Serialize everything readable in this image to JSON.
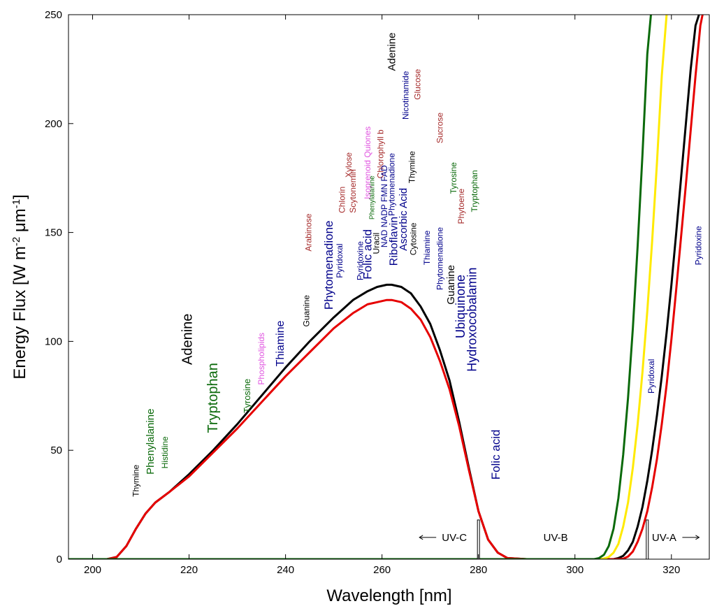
{
  "chart_data": {
    "type": "line",
    "title": "",
    "xlabel": "Wavelength [nm]",
    "ylabel_parts": [
      "Energy Flux [W m",
      "-2",
      " μm",
      "-1",
      "]"
    ],
    "xlim": [
      195,
      328
    ],
    "ylim": [
      0,
      250
    ],
    "xticks": [
      200,
      220,
      240,
      260,
      280,
      300,
      320
    ],
    "yticks": [
      0,
      50,
      100,
      150,
      200,
      250
    ],
    "grid": false,
    "legend": "none",
    "series": [
      {
        "color": "#000000",
        "x": [
          195,
          203,
          205,
          207,
          209,
          211,
          213,
          216,
          220,
          225,
          230,
          235,
          240,
          245,
          250,
          254,
          257,
          259,
          261,
          262,
          264,
          266,
          268,
          270,
          272,
          274,
          276,
          278,
          280,
          282,
          284,
          286,
          290,
          300,
          305,
          306,
          307,
          308,
          309,
          310,
          311,
          312,
          313,
          314,
          315,
          316,
          317,
          318,
          319,
          320,
          321,
          322,
          323,
          324,
          325,
          326,
          327
        ],
        "y": [
          0,
          0,
          1,
          6,
          14,
          21,
          26,
          31,
          39,
          50,
          62,
          75,
          88,
          100,
          111,
          119,
          123,
          125,
          126,
          126,
          125,
          122,
          116,
          108,
          96,
          82,
          63,
          42,
          22,
          9,
          3,
          0.5,
          0,
          0,
          0,
          0,
          0,
          0,
          0.5,
          1.5,
          4,
          8,
          15,
          24,
          36,
          50,
          66,
          84,
          104,
          126,
          150,
          175,
          200,
          225,
          245,
          252,
          255
        ]
      },
      {
        "color": "#e60000",
        "x": [
          195,
          203,
          205,
          207,
          209,
          211,
          213,
          216,
          220,
          225,
          230,
          235,
          240,
          245,
          250,
          254,
          257,
          259,
          261,
          262,
          264,
          266,
          268,
          270,
          272,
          274,
          276,
          278,
          280,
          282,
          284,
          286,
          290,
          300,
          305,
          306,
          307,
          308,
          309,
          310,
          311,
          312,
          313,
          314,
          315,
          316,
          317,
          318,
          319,
          320,
          321,
          322,
          323,
          324,
          325,
          326,
          327
        ],
        "y": [
          0,
          0,
          1,
          6,
          14,
          21,
          26,
          31,
          38,
          49,
          60,
          72,
          84,
          95,
          106,
          113,
          117,
          118,
          119,
          119,
          118,
          115,
          110,
          102,
          91,
          78,
          61,
          41,
          22,
          9,
          3,
          0.5,
          0,
          0,
          0,
          0,
          0,
          0,
          0,
          0.2,
          1.2,
          3.5,
          8,
          14,
          22,
          33,
          46,
          62,
          80,
          101,
          124,
          148,
          172,
          197,
          222,
          245,
          256
        ]
      },
      {
        "color": "#ffea00",
        "x": [
          195,
          300,
          305,
          306,
          307,
          308,
          309,
          310,
          311,
          312,
          313,
          314,
          315,
          316,
          317,
          318,
          319,
          319.5
        ],
        "y": [
          0,
          0,
          0,
          0.3,
          1,
          3,
          7,
          15,
          26,
          42,
          62,
          86,
          114,
          146,
          182,
          222,
          250,
          255
        ]
      },
      {
        "color": "#0b6a0b",
        "x": [
          195,
          300,
          304,
          305,
          306,
          307,
          308,
          309,
          310,
          311,
          312,
          313,
          314,
          315,
          316,
          316.5
        ],
        "y": [
          0,
          0,
          0,
          0.5,
          2,
          6,
          14,
          28,
          48,
          74,
          106,
          144,
          186,
          232,
          256,
          257
        ]
      }
    ],
    "boundaries": [
      {
        "x": 280,
        "height": 18
      },
      {
        "x": 315,
        "height": 18
      }
    ],
    "regions": [
      {
        "label": "UV-C",
        "x": 275,
        "y": 10,
        "arrow": "left"
      },
      {
        "label": "UV-B",
        "x": 296,
        "y": 10,
        "arrow": "none"
      },
      {
        "label": "UV-A",
        "x": 318.5,
        "y": 10,
        "arrow": "right"
      }
    ],
    "annotations": [
      {
        "text": "Thymine",
        "x": 209,
        "y": 36,
        "color": "#000000",
        "size": 12
      },
      {
        "text": "Phenylalanine",
        "x": 212,
        "y": 54,
        "color": "#0b6a0b",
        "size": 15
      },
      {
        "text": "Histidine",
        "x": 215,
        "y": 49,
        "color": "#0b6a0b",
        "size": 12
      },
      {
        "text": "Adenine",
        "x": 219.7,
        "y": 101,
        "color": "#000000",
        "size": 20
      },
      {
        "text": "Tryptophan",
        "x": 225,
        "y": 74,
        "color": "#0b6a0b",
        "size": 20
      },
      {
        "text": "Tyrosine",
        "x": 232,
        "y": 75,
        "color": "#0b6a0b",
        "size": 13
      },
      {
        "text": "Phospholipids",
        "x": 235,
        "y": 92,
        "color": "#e055e0",
        "size": 12
      },
      {
        "text": "Thiamine",
        "x": 239,
        "y": 99,
        "color": "#00008b",
        "size": 16
      },
      {
        "text": "Guanine",
        "x": 244.3,
        "y": 114,
        "color": "#000000",
        "size": 12
      },
      {
        "text": "Arabinose",
        "x": 244.8,
        "y": 150,
        "color": "#a52a2a",
        "size": 12
      },
      {
        "text": "Phytomenadione",
        "x": 249,
        "y": 135,
        "color": "#00008b",
        "size": 17
      },
      {
        "text": "Pyridoxal",
        "x": 251.2,
        "y": 137,
        "color": "#00008b",
        "size": 12
      },
      {
        "text": "Chlorin",
        "x": 251.7,
        "y": 165,
        "color": "#a52a2a",
        "size": 12
      },
      {
        "text": "Xylose",
        "x": 253.1,
        "y": 181,
        "color": "#a52a2a",
        "size": 12
      },
      {
        "text": "Scytonemin",
        "x": 254,
        "y": 169,
        "color": "#a52a2a",
        "size": 12
      },
      {
        "text": "Pyridoxine",
        "x": 255.5,
        "y": 137,
        "color": "#00008b",
        "size": 12
      },
      {
        "text": "Folic acid",
        "x": 257,
        "y": 140,
        "color": "#00008b",
        "size": 17
      },
      {
        "text": "Isoprenoid Quiones",
        "x": 257,
        "y": 182,
        "color": "#e055e0",
        "size": 12
      },
      {
        "text": "Phenylalanine",
        "x": 258,
        "y": 166,
        "color": "#0b6a0b",
        "size": 10
      },
      {
        "text": "Uracil",
        "x": 258.8,
        "y": 145,
        "color": "#000000",
        "size": 12
      },
      {
        "text": "Chlorophyll b",
        "x": 259.7,
        "y": 186,
        "color": "#a52a2a",
        "size": 12
      },
      {
        "text": "NAD NADP FMN FAD",
        "x": 260.5,
        "y": 162,
        "color": "#00008b",
        "size": 12
      },
      {
        "text": "Phytomenadione",
        "x": 262,
        "y": 172,
        "color": "#00008b",
        "size": 12
      },
      {
        "text": "Adenine",
        "x": 262.1,
        "y": 233,
        "color": "#000000",
        "size": 15
      },
      {
        "text": "Riboflavin",
        "x": 262.5,
        "y": 146,
        "color": "#00008b",
        "size": 16
      },
      {
        "text": "Ascorbic Acid",
        "x": 264.5,
        "y": 156,
        "color": "#00008b",
        "size": 15
      },
      {
        "text": "Nicotinamide",
        "x": 264.9,
        "y": 213,
        "color": "#00008b",
        "size": 12
      },
      {
        "text": "Thymine",
        "x": 266.2,
        "y": 180,
        "color": "#000000",
        "size": 12
      },
      {
        "text": "Cytosine",
        "x": 266.5,
        "y": 147,
        "color": "#000000",
        "size": 12
      },
      {
        "text": "Glucose",
        "x": 267.4,
        "y": 218,
        "color": "#a52a2a",
        "size": 12
      },
      {
        "text": "Thiamine",
        "x": 269.3,
        "y": 143,
        "color": "#00008b",
        "size": 12
      },
      {
        "text": "Sucrose",
        "x": 272,
        "y": 198,
        "color": "#a52a2a",
        "size": 12
      },
      {
        "text": "Phytomenadione",
        "x": 272,
        "y": 138,
        "color": "#00008b",
        "size": 12
      },
      {
        "text": "Guanine",
        "x": 274.3,
        "y": 126,
        "color": "#000000",
        "size": 15
      },
      {
        "text": "Ubiquinone",
        "x": 276.3,
        "y": 116,
        "color": "#00008b",
        "size": 18
      },
      {
        "text": "Phytoene",
        "x": 276.4,
        "y": 162,
        "color": "#a52a2a",
        "size": 12
      },
      {
        "text": "Tyrosine",
        "x": 274.8,
        "y": 175,
        "color": "#0b6a0b",
        "size": 12
      },
      {
        "text": "Hydroxocobalamin",
        "x": 278.7,
        "y": 110,
        "color": "#00008b",
        "size": 18
      },
      {
        "text": "Tryptophan",
        "x": 279.2,
        "y": 169,
        "color": "#0b6a0b",
        "size": 12
      },
      {
        "text": "Folic acid",
        "x": 283.6,
        "y": 48,
        "color": "#00008b",
        "size": 17
      },
      {
        "text": "Pyridoxal",
        "x": 315.8,
        "y": 84,
        "color": "#00008b",
        "size": 12
      },
      {
        "text": "Pyridoxine",
        "x": 325.6,
        "y": 144,
        "color": "#00008b",
        "size": 12
      }
    ]
  }
}
